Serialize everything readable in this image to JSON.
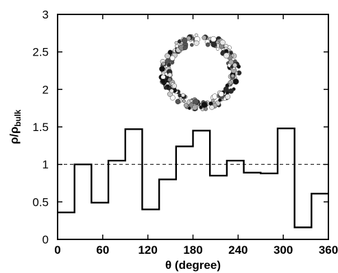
{
  "chart_data": {
    "type": "line",
    "step": true,
    "xlabel": "θ (degree)",
    "ylabel": {
      "base": "ρ/ρ",
      "subscript": "bulk"
    },
    "xlim": [
      0,
      360
    ],
    "ylim": [
      0,
      3
    ],
    "x_ticks": [
      0,
      60,
      120,
      180,
      240,
      300,
      360
    ],
    "y_ticks": [
      0,
      0.5,
      1,
      1.5,
      2,
      2.5,
      3
    ],
    "x_tick_labels": [
      "0",
      "60",
      "120",
      "180",
      "240",
      "300",
      "360"
    ],
    "y_tick_labels": [
      "0",
      "0.5",
      "1",
      "1.5",
      "2",
      "2.5",
      "3"
    ],
    "bin_edges": [
      0,
      22.5,
      45,
      67.5,
      90,
      112.5,
      135,
      157.5,
      180,
      202.5,
      225,
      247.5,
      270,
      292.5,
      315,
      337.5,
      360
    ],
    "values": [
      0.36,
      1.0,
      0.49,
      1.05,
      1.47,
      0.4,
      0.8,
      1.24,
      1.45,
      0.85,
      1.05,
      0.89,
      0.88,
      1.48,
      0.16,
      0.61
    ],
    "reference_line": {
      "y": 1.0,
      "style": "dashed"
    },
    "grid": false,
    "inset": "ring of molecules (image)"
  }
}
